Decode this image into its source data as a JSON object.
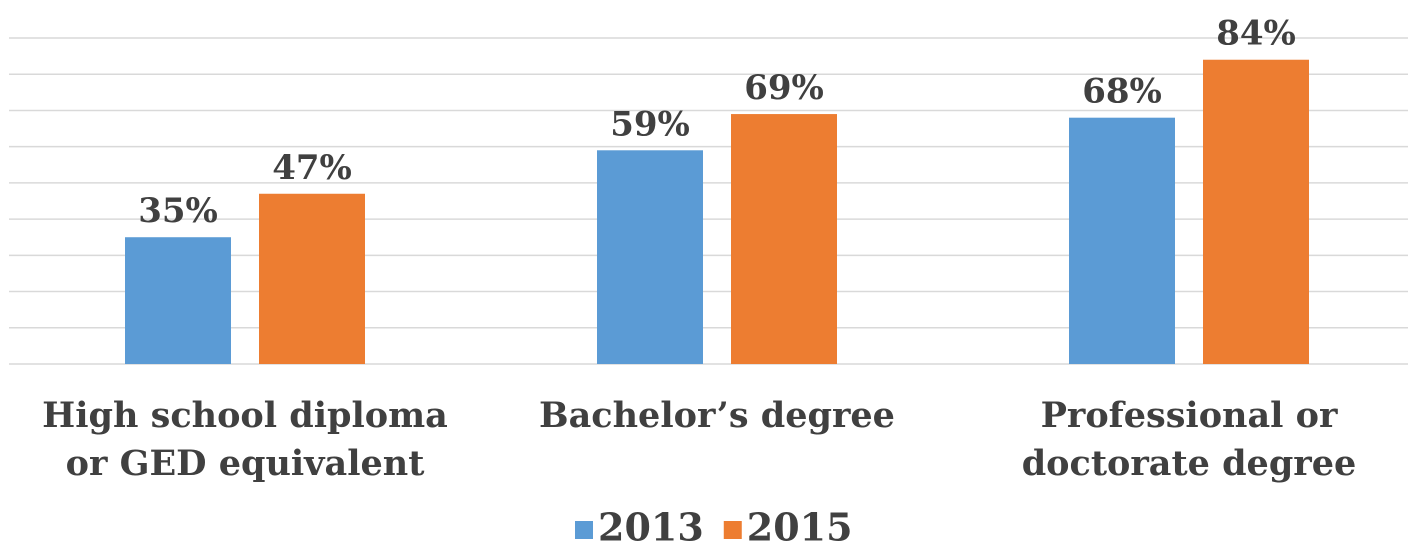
{
  "chart_data": {
    "type": "bar",
    "categories": [
      "High school diploma\nor GED equivalent",
      "Bachelor’s degree",
      "Professional or\ndoctorate degree"
    ],
    "series": [
      {
        "name": "2013",
        "color": "#5b9bd5",
        "values": [
          35,
          59,
          68
        ],
        "value_labels": [
          "35%",
          "59%",
          "68%"
        ]
      },
      {
        "name": "2015",
        "color": "#ed7d31",
        "values": [
          47,
          69,
          84
        ],
        "value_labels": [
          "47%",
          "69%",
          "84%"
        ]
      }
    ],
    "ylim": [
      0,
      90
    ],
    "yticks": [
      0,
      10,
      20,
      30,
      40,
      50,
      60,
      70,
      80,
      90
    ],
    "grid": true,
    "legend": "bottom"
  }
}
